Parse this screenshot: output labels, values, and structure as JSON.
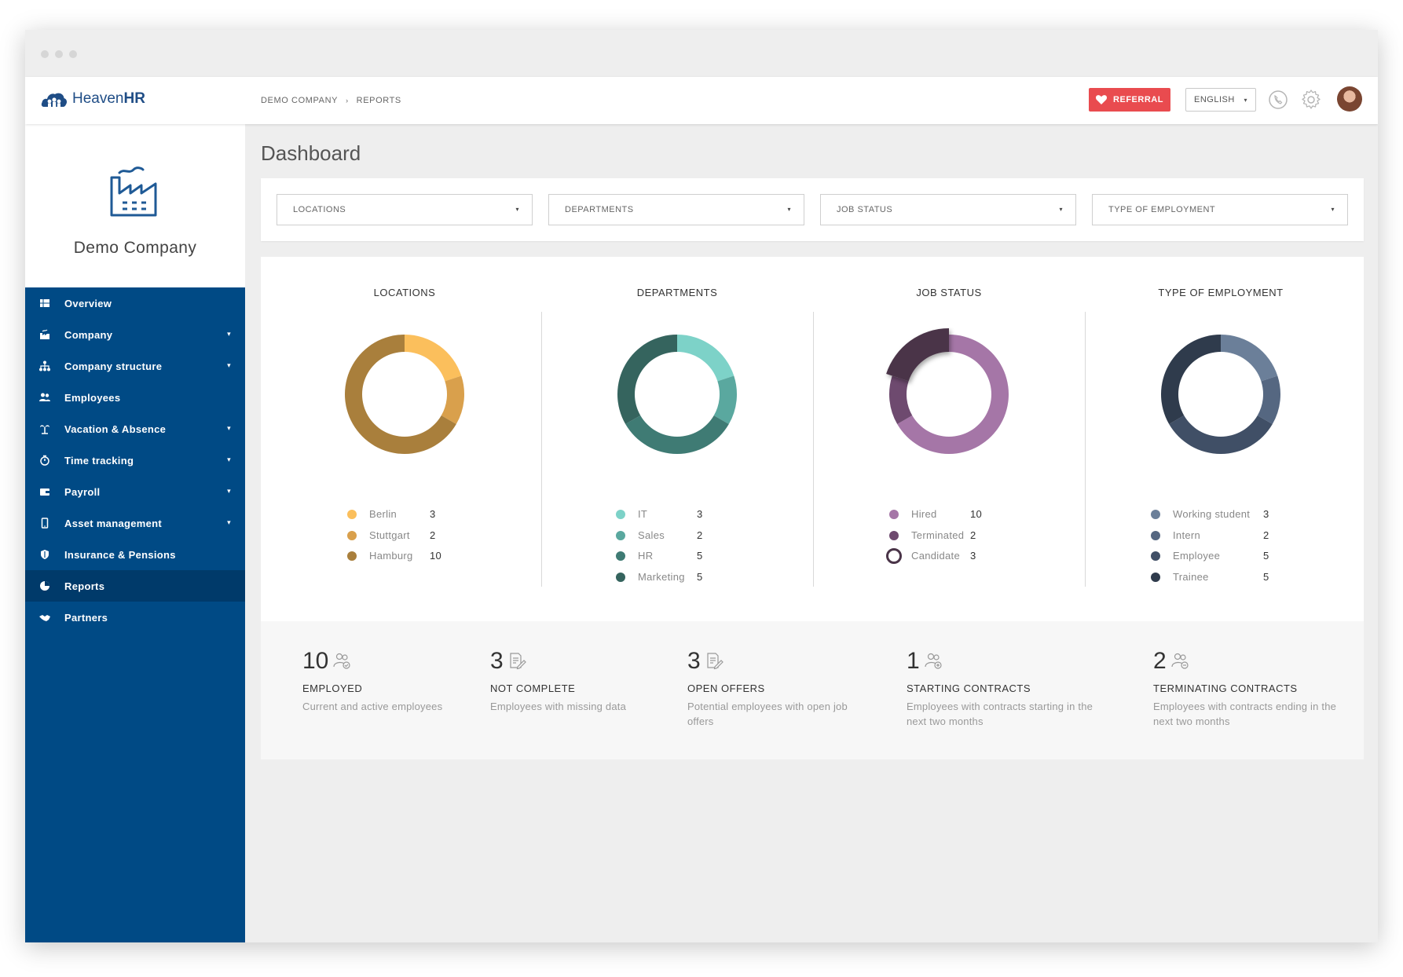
{
  "app": {
    "brand_light": "Heaven",
    "brand_bold": "HR"
  },
  "breadcrumb": {
    "items": [
      "DEMO COMPANY",
      "REPORTS"
    ],
    "separator": "›"
  },
  "header": {
    "referral_label": "REFERRAL",
    "language": "ENGLISH",
    "icons": [
      "phone-icon",
      "gear-icon",
      "avatar"
    ]
  },
  "sidebar": {
    "company_name": "Demo Company",
    "items": [
      {
        "label": "Overview",
        "icon": "grid-icon",
        "has_caret": false,
        "active": false
      },
      {
        "label": "Company",
        "icon": "factory-icon",
        "has_caret": true,
        "active": false
      },
      {
        "label": "Company structure",
        "icon": "hierarchy-icon",
        "has_caret": true,
        "active": false
      },
      {
        "label": "Employees",
        "icon": "people-icon",
        "has_caret": false,
        "active": false
      },
      {
        "label": "Vacation & Absence",
        "icon": "palm-icon",
        "has_caret": true,
        "active": false
      },
      {
        "label": "Time tracking",
        "icon": "stopwatch-icon",
        "has_caret": true,
        "active": false
      },
      {
        "label": "Payroll",
        "icon": "wallet-icon",
        "has_caret": true,
        "active": false
      },
      {
        "label": "Asset management",
        "icon": "phone-device-icon",
        "has_caret": true,
        "active": false
      },
      {
        "label": "Insurance & Pensions",
        "icon": "shield-icon",
        "has_caret": false,
        "active": false
      },
      {
        "label": "Reports",
        "icon": "pie-icon",
        "has_caret": false,
        "active": true
      },
      {
        "label": "Partners",
        "icon": "handshake-icon",
        "has_caret": false,
        "active": false
      }
    ]
  },
  "page": {
    "title": "Dashboard"
  },
  "filters": [
    {
      "placeholder": "LOCATIONS"
    },
    {
      "placeholder": "DEPARTMENTS"
    },
    {
      "placeholder": "JOB STATUS"
    },
    {
      "placeholder": "TYPE OF EMPLOYMENT"
    }
  ],
  "chart_data": [
    {
      "type": "pie",
      "title": "LOCATIONS",
      "categories": [
        "Berlin",
        "Stuttgart",
        "Hamburg"
      ],
      "values": [
        3,
        2,
        10
      ],
      "colors": [
        "#fbbf5c",
        "#d9a04c",
        "#a97f3c"
      ]
    },
    {
      "type": "pie",
      "title": "DEPARTMENTS",
      "categories": [
        "IT",
        "Sales",
        "HR",
        "Marketing"
      ],
      "values": [
        3,
        2,
        5,
        5
      ],
      "colors": [
        "#7dd2c8",
        "#5aa89f",
        "#3f7b74",
        "#35645e"
      ]
    },
    {
      "type": "pie",
      "title": "JOB STATUS",
      "categories": [
        "Hired",
        "Terminated",
        "Candidate"
      ],
      "values": [
        10,
        2,
        3
      ],
      "colors": [
        "#a576a7",
        "#6e4a6f",
        "#4a3448"
      ],
      "highlighted": "Candidate"
    },
    {
      "type": "pie",
      "title": "TYPE OF EMPLOYMENT",
      "categories": [
        "Working student",
        "Intern",
        "Employee",
        "Trainee"
      ],
      "values": [
        3,
        2,
        5,
        5
      ],
      "colors": [
        "#6b7f99",
        "#556781",
        "#404f66",
        "#2f3b4c"
      ]
    }
  ],
  "stats": [
    {
      "number": "10",
      "title": "EMPLOYED",
      "desc": "Current and active employees",
      "icon": "people-check-icon"
    },
    {
      "number": "3",
      "title": "NOT COMPLETE",
      "desc": "Employees with missing data",
      "icon": "document-edit-icon"
    },
    {
      "number": "3",
      "title": "OPEN OFFERS",
      "desc": "Potential employees with open job offers",
      "icon": "document-edit-icon"
    },
    {
      "number": "1",
      "title": "STARTING CONTRACTS",
      "desc": "Employees with contracts starting in the next two months",
      "icon": "people-plus-icon"
    },
    {
      "number": "2",
      "title": "TERMINATING CONTRACTS",
      "desc": "Employees with contracts ending in the next two months",
      "icon": "people-minus-icon"
    }
  ]
}
